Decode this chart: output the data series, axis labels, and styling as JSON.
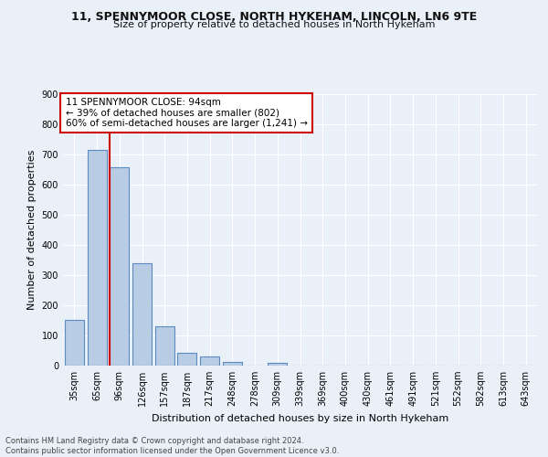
{
  "title_line1": "11, SPENNYMOOR CLOSE, NORTH HYKEHAM, LINCOLN, LN6 9TE",
  "title_line2": "Size of property relative to detached houses in North Hykeham",
  "xlabel": "Distribution of detached houses by size in North Hykeham",
  "ylabel": "Number of detached properties",
  "footnote": "Contains HM Land Registry data © Crown copyright and database right 2024.\nContains public sector information licensed under the Open Government Licence v3.0.",
  "bar_labels": [
    "35sqm",
    "65sqm",
    "96sqm",
    "126sqm",
    "157sqm",
    "187sqm",
    "217sqm",
    "248sqm",
    "278sqm",
    "309sqm",
    "339sqm",
    "369sqm",
    "400sqm",
    "430sqm",
    "461sqm",
    "491sqm",
    "521sqm",
    "552sqm",
    "582sqm",
    "613sqm",
    "643sqm"
  ],
  "bar_values": [
    150,
    715,
    655,
    340,
    130,
    42,
    30,
    12,
    0,
    8,
    0,
    0,
    0,
    0,
    0,
    0,
    0,
    0,
    0,
    0,
    0
  ],
  "bar_color": "#b8cce4",
  "bar_edge_color": "#5b8bc0",
  "vline_index": 2,
  "vline_color": "#cc0000",
  "annotation_text": "11 SPENNYMOOR CLOSE: 94sqm\n← 39% of detached houses are smaller (802)\n60% of semi-detached houses are larger (1,241) →",
  "annotation_box_color": "#ffffff",
  "annotation_box_edge": "#cc0000",
  "ylim": [
    0,
    900
  ],
  "yticks": [
    0,
    100,
    200,
    300,
    400,
    500,
    600,
    700,
    800,
    900
  ],
  "background_color": "#eaf0f8",
  "plot_background": "#eaf0f8",
  "grid_color": "#ffffff",
  "title_fontsize": 9,
  "subtitle_fontsize": 8,
  "ylabel_fontsize": 8,
  "xlabel_fontsize": 8,
  "tick_fontsize": 7,
  "footnote_fontsize": 6,
  "annotation_fontsize": 7.5
}
